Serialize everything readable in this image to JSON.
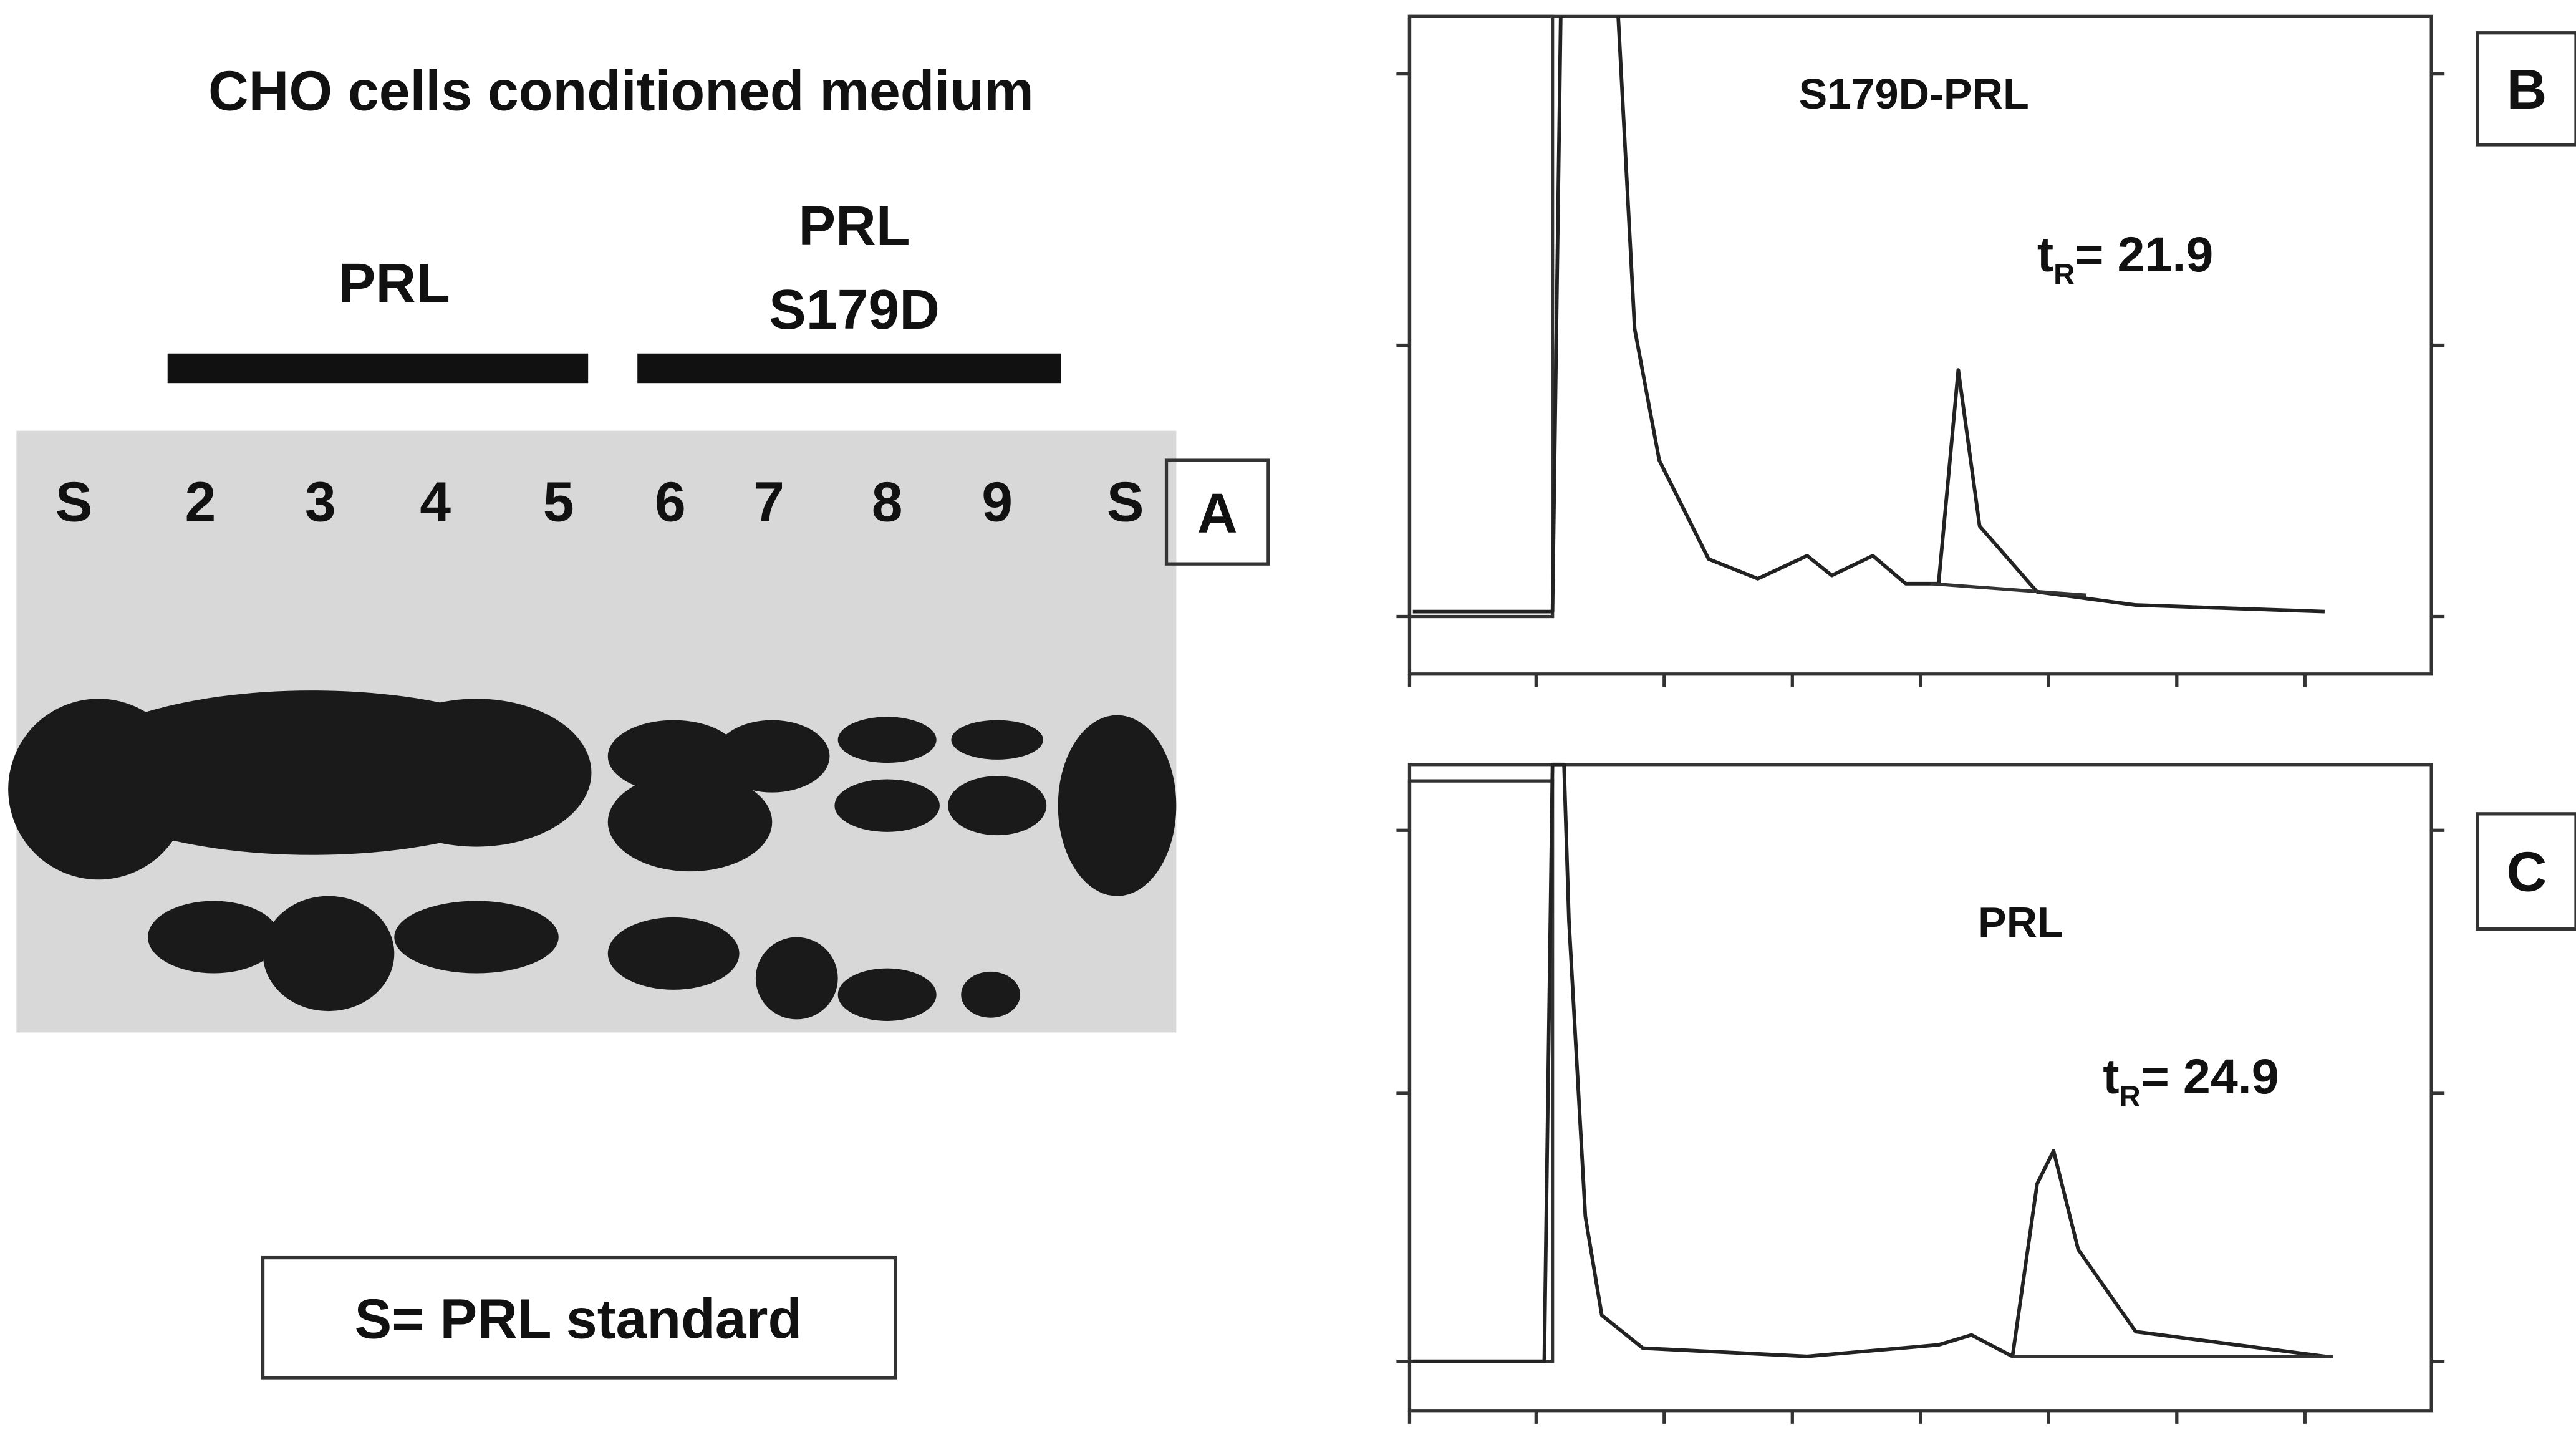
{
  "panel_a": {
    "title": "CHO cells conditioned medium",
    "groups": [
      [
        "PRL"
      ],
      [
        "PRL",
        "S179D"
      ]
    ],
    "lanes": [
      "S",
      "2",
      "3",
      "4",
      "5",
      "6",
      "7",
      "8",
      "9",
      "S"
    ],
    "label": "A",
    "legend": "S= PRL standard"
  },
  "panel_b": {
    "label": "B",
    "sample": "S179D-PRL",
    "retention": {
      "symbol": "t",
      "subscript": "R",
      "text": "= 21.9"
    }
  },
  "panel_c": {
    "label": "C",
    "sample": "PRL",
    "retention": {
      "symbol": "t",
      "subscript": "R",
      "text": "= 24.9"
    }
  }
}
